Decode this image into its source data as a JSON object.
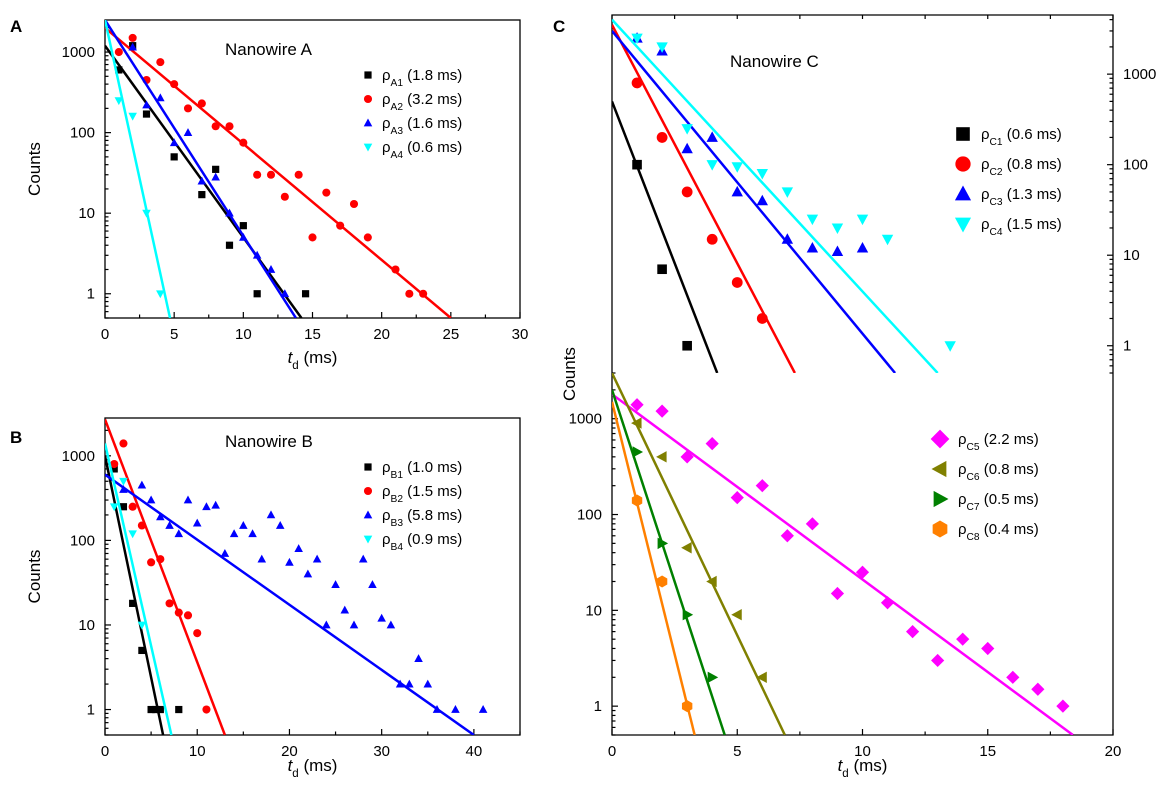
{
  "colors": {
    "black": "#000000",
    "red": "#ff0000",
    "blue": "#0000ff",
    "cyan": "#00ffff",
    "magenta": "#ff00ff",
    "olive": "#808000",
    "green": "#008000",
    "orange": "#ff8000"
  },
  "chart_data": [
    {
      "id": "A",
      "type": "scatter",
      "panel_letter": "A",
      "title": "Nanowire A",
      "xlabel_main": "t",
      "xlabel_sub": "d",
      "xlabel_rest": " (ms)",
      "ylabel": "Counts",
      "xlim": [
        0,
        30
      ],
      "ylim": [
        0.5,
        2500
      ],
      "yscale": "log",
      "xticks": [
        0,
        5,
        10,
        15,
        20,
        25,
        30
      ],
      "yticks": [
        1,
        10,
        100,
        1000
      ],
      "legend_position": "top-right",
      "series": [
        {
          "label_main": "ρ",
          "label_sub": "A1",
          "label_rest": " (1.8 ms)",
          "marker": "square",
          "color": "#000000",
          "x": [
            1,
            2,
            3,
            5,
            7,
            8,
            9,
            10,
            11,
            14.5
          ],
          "y": [
            600,
            1200,
            170,
            50,
            17,
            35,
            4,
            7,
            1,
            1
          ],
          "fit": [
            [
              0,
              1200
            ],
            [
              14.2,
              0.5
            ]
          ]
        },
        {
          "label_main": "ρ",
          "label_sub": "A2",
          "label_rest": " (3.2 ms)",
          "marker": "circle",
          "color": "#ff0000",
          "x": [
            1,
            2,
            3,
            4,
            5,
            6,
            7,
            8,
            9,
            10,
            11,
            12,
            13,
            14,
            15,
            16,
            17,
            18,
            19,
            21,
            22,
            23
          ],
          "y": [
            1000,
            1500,
            450,
            750,
            400,
            200,
            230,
            120,
            120,
            75,
            30,
            30,
            16,
            30,
            5,
            18,
            7,
            13,
            5,
            2,
            1,
            1
          ],
          "fit": [
            [
              0,
              2000
            ],
            [
              25,
              0.5
            ]
          ]
        },
        {
          "label_main": "ρ",
          "label_sub": "A3",
          "label_rest": " (1.6 ms)",
          "marker": "triangle-up",
          "color": "#0000ff",
          "x": [
            2,
            3,
            4,
            5,
            6,
            7,
            8,
            9,
            10,
            11,
            12,
            13
          ],
          "y": [
            1150,
            220,
            270,
            75,
            100,
            25,
            28,
            10,
            5,
            3,
            2,
            1
          ],
          "fit": [
            [
              0,
              2500
            ],
            [
              13.8,
              0.5
            ]
          ]
        },
        {
          "label_main": "ρ",
          "label_sub": "A4",
          "label_rest": " (0.6 ms)",
          "marker": "triangle-down",
          "color": "#00ffff",
          "x": [
            1,
            2,
            3,
            4
          ],
          "y": [
            250,
            160,
            10,
            1
          ],
          "fit": [
            [
              0,
              2500
            ],
            [
              4.7,
              0.5
            ]
          ]
        }
      ]
    },
    {
      "id": "B",
      "type": "scatter",
      "panel_letter": "B",
      "title": "Nanowire B",
      "xlabel_main": "t",
      "xlabel_sub": "d",
      "xlabel_rest": " (ms)",
      "ylabel": "Counts",
      "xlim": [
        0,
        45
      ],
      "ylim": [
        0.5,
        2800
      ],
      "yscale": "log",
      "xticks": [
        0,
        10,
        20,
        30,
        40
      ],
      "yticks": [
        1,
        10,
        100,
        1000
      ],
      "legend_position": "top-right",
      "series": [
        {
          "label_main": "ρ",
          "label_sub": "B1",
          "label_rest": " (1.0 ms)",
          "marker": "square",
          "color": "#000000",
          "x": [
            1,
            2,
            3,
            4,
            5,
            5.5,
            6,
            8
          ],
          "y": [
            700,
            250,
            18,
            5,
            1,
            1,
            1,
            1
          ],
          "fit": [
            [
              0,
              1000
            ],
            [
              6.3,
              0.5
            ]
          ]
        },
        {
          "label_main": "ρ",
          "label_sub": "B2",
          "label_rest": " (1.5 ms)",
          "marker": "circle",
          "color": "#ff0000",
          "x": [
            1,
            2,
            3,
            4,
            5,
            6,
            7,
            8,
            9,
            10,
            11
          ],
          "y": [
            800,
            1400,
            250,
            150,
            55,
            60,
            18,
            14,
            13,
            8,
            1
          ],
          "fit": [
            [
              0,
              2700
            ],
            [
              13,
              0.5
            ]
          ]
        },
        {
          "label_main": "ρ",
          "label_sub": "B3",
          "label_rest": " (5.8 ms)",
          "marker": "triangle-up",
          "color": "#0000ff",
          "x": [
            2,
            4,
            5,
            6,
            7,
            8,
            9,
            10,
            11,
            12,
            13,
            14,
            15,
            16,
            17,
            18,
            19,
            20,
            21,
            22,
            23,
            24,
            25,
            26,
            27,
            28,
            29,
            30,
            31,
            32,
            33,
            34,
            35,
            36,
            38,
            41
          ],
          "y": [
            400,
            450,
            300,
            190,
            150,
            120,
            300,
            160,
            250,
            260,
            70,
            120,
            150,
            120,
            60,
            200,
            150,
            55,
            80,
            40,
            60,
            10,
            30,
            15,
            10,
            60,
            30,
            12,
            10,
            2,
            2,
            4,
            2,
            1,
            1,
            1
          ],
          "fit": [
            [
              0,
              600
            ],
            [
              40,
              0.5
            ]
          ]
        },
        {
          "label_main": "ρ",
          "label_sub": "B4",
          "label_rest": " (0.9 ms)",
          "marker": "triangle-down",
          "color": "#00ffff",
          "x": [
            1,
            2,
            3,
            4
          ],
          "y": [
            250,
            500,
            120,
            10
          ],
          "fit": [
            [
              0,
              1400
            ],
            [
              7.2,
              0.5
            ]
          ]
        }
      ]
    },
    {
      "id": "C_top",
      "type": "scatter",
      "panel_letter": "C",
      "title": "Nanowire C",
      "xlim": [
        0,
        20
      ],
      "ylim": [
        0.5,
        4500
      ],
      "yscale": "log",
      "yticks": [
        1,
        10,
        100,
        1000
      ],
      "legend_position": "top-right",
      "series": [
        {
          "label_main": "ρ",
          "label_sub": "C1",
          "label_rest": " (0.6 ms)",
          "marker": "square",
          "color": "#000000",
          "x": [
            1,
            2,
            3
          ],
          "y": [
            100,
            7,
            1
          ],
          "fit": [
            [
              0,
              500
            ],
            [
              4.2,
              0.5
            ]
          ]
        },
        {
          "label_main": "ρ",
          "label_sub": "C2",
          "label_rest": " (0.8 ms)",
          "marker": "circle",
          "color": "#ff0000",
          "x": [
            1,
            2,
            3,
            4,
            5,
            6
          ],
          "y": [
            800,
            200,
            50,
            15,
            5,
            2
          ],
          "fit": [
            [
              0,
              3500
            ],
            [
              7.3,
              0.5
            ]
          ]
        },
        {
          "label_main": "ρ",
          "label_sub": "C3",
          "label_rest": " (1.3 ms)",
          "marker": "triangle-up",
          "color": "#0000ff",
          "x": [
            1,
            2,
            3,
            4,
            5,
            6,
            7,
            8,
            9,
            10
          ],
          "y": [
            2500,
            1800,
            150,
            200,
            50,
            40,
            15,
            12,
            11,
            12
          ],
          "fit": [
            [
              0,
              3000
            ],
            [
              11.3,
              0.5
            ]
          ]
        },
        {
          "label_main": "ρ",
          "label_sub": "C4",
          "label_rest": " (1.5 ms)",
          "marker": "triangle-down",
          "color": "#00ffff",
          "x": [
            1,
            2,
            3,
            4,
            5,
            6,
            7,
            8,
            9,
            10,
            11,
            13.5
          ],
          "y": [
            2500,
            2000,
            250,
            100,
            95,
            80,
            50,
            25,
            20,
            25,
            15,
            1
          ],
          "fit": [
            [
              0,
              4000
            ],
            [
              13,
              0.5
            ]
          ]
        }
      ]
    },
    {
      "id": "C_bottom",
      "type": "scatter",
      "panel_letter": "",
      "xlabel_main": "t",
      "xlabel_sub": "d",
      "xlabel_rest": " (ms)",
      "ylabel": "Counts",
      "xlim": [
        0,
        20
      ],
      "ylim": [
        0.5,
        3000
      ],
      "yscale": "log",
      "xticks": [
        0,
        5,
        10,
        15,
        20
      ],
      "yticks": [
        1,
        10,
        100,
        1000
      ],
      "legend_position": "top-right",
      "series": [
        {
          "label_main": "ρ",
          "label_sub": "C5",
          "label_rest": " (2.2 ms)",
          "marker": "diamond",
          "color": "#ff00ff",
          "x": [
            1,
            2,
            3,
            4,
            5,
            6,
            7,
            8,
            9,
            10,
            11,
            12,
            13,
            14,
            15,
            16,
            17,
            18
          ],
          "y": [
            1400,
            1200,
            400,
            550,
            150,
            200,
            60,
            80,
            15,
            25,
            12,
            6,
            3,
            5,
            4,
            2,
            1.5,
            1
          ],
          "fit": [
            [
              0,
              1800
            ],
            [
              18.4,
              0.5
            ]
          ]
        },
        {
          "label_main": "ρ",
          "label_sub": "C6",
          "label_rest": " (0.8 ms)",
          "marker": "triangle-left",
          "color": "#808000",
          "x": [
            1,
            2,
            3,
            4,
            5,
            6
          ],
          "y": [
            900,
            400,
            45,
            20,
            9,
            2
          ],
          "fit": [
            [
              0,
              3000
            ],
            [
              6.9,
              0.5
            ]
          ]
        },
        {
          "label_main": "ρ",
          "label_sub": "C7",
          "label_rest": " (0.5 ms)",
          "marker": "triangle-right",
          "color": "#008000",
          "x": [
            1,
            2,
            3,
            4
          ],
          "y": [
            450,
            50,
            9,
            2
          ],
          "fit": [
            [
              0,
              2000
            ],
            [
              4.5,
              0.5
            ]
          ]
        },
        {
          "label_main": "ρ",
          "label_sub": "C8",
          "label_rest": " (0.4 ms)",
          "marker": "hexagon",
          "color": "#ff8000",
          "x": [
            1,
            2,
            3
          ],
          "y": [
            140,
            20,
            1
          ],
          "fit": [
            [
              0,
              1500
            ],
            [
              3.3,
              0.5
            ]
          ]
        }
      ]
    }
  ]
}
